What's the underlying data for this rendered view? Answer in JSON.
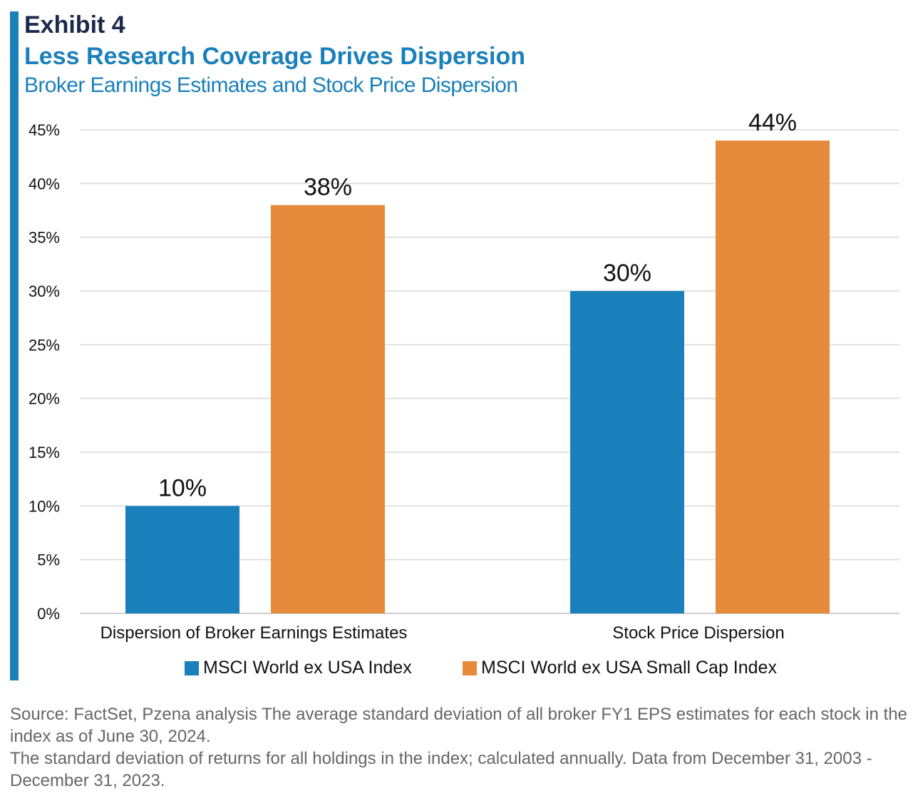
{
  "header": {
    "exhibit": "Exhibit 4",
    "title": "Less Research Coverage Drives Dispersion",
    "subtitle": "Broker Earnings Estimates and Stock Price Dispersion"
  },
  "colors": {
    "accent": "#1a80bb",
    "series_blue": "#1a80bb",
    "series_orange": "#e68b3c",
    "gridline": "#d9d9d9"
  },
  "chart_data": {
    "type": "bar",
    "categories": [
      "Dispersion of Broker Earnings Estimates",
      "Stock Price Dispersion"
    ],
    "series": [
      {
        "name": "MSCI World ex USA Index",
        "values": [
          10,
          30
        ],
        "labels": [
          "10%",
          "30%"
        ]
      },
      {
        "name": "MSCI World ex USA Small Cap Index",
        "values": [
          38,
          44
        ],
        "labels": [
          "38%",
          "44%"
        ]
      }
    ],
    "ylim": [
      0,
      45
    ],
    "yticks": [
      0,
      5,
      10,
      15,
      20,
      25,
      30,
      35,
      40,
      45
    ],
    "ytick_labels": [
      "0%",
      "5%",
      "10%",
      "15%",
      "20%",
      "25%",
      "30%",
      "35%",
      "40%",
      "45%"
    ],
    "grid": true,
    "legend": "bottom"
  },
  "footnote": {
    "line1": "Source: FactSet, Pzena analysis The average standard deviation of all broker FY1 EPS estimates for each stock in the index as of June 30, 2024.",
    "line2": "The standard deviation of returns for all holdings in the index; calculated annually. Data from December 31, 2003 - December 31, 2023."
  }
}
